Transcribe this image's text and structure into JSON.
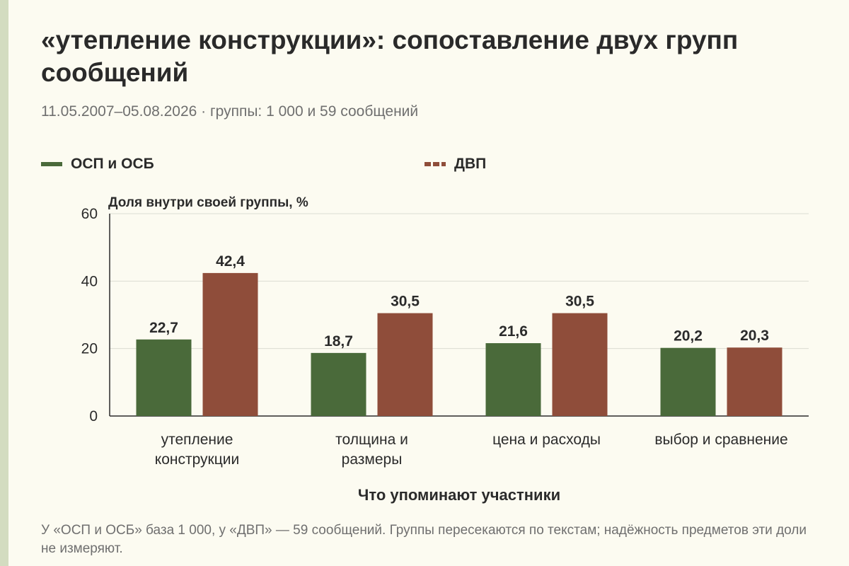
{
  "title": "«утепление конструкции»: сопоставление двух групп сообщений",
  "subtitle": "11.05.2007–05.08.2026 · группы: 1 000 и 59 сообщений",
  "note": "У «ОСП и ОСБ» база 1 000, у «ДВП» — 59 сообщений. Группы пересекаются по текстам; надёжность предметов эти доли не измеряют.",
  "colors": {
    "green": "#4a6a3a",
    "brown": "#8f4d3a",
    "grid": "#dcdcd2",
    "background": "#fcfbf1"
  },
  "chart_data": {
    "type": "bar",
    "ylabel": "Доля внутри своей группы, %",
    "xlabel": "Что упоминают участники",
    "ylim": [
      0,
      60
    ],
    "yticks": [
      "0",
      "20",
      "40",
      "60"
    ],
    "grid": true,
    "legend_position": "top",
    "categories": [
      [
        "утепление",
        "конструкции"
      ],
      [
        "толщина и",
        "размеры"
      ],
      [
        "цена и расходы"
      ],
      [
        "выбор и сравнение"
      ]
    ],
    "series": [
      {
        "name": "ОСП и ОСБ",
        "color": "#4a6a3a",
        "values": [
          22.7,
          18.7,
          21.6,
          20.2
        ],
        "labels": [
          "22,7",
          "18,7",
          "21,6",
          "20,2"
        ]
      },
      {
        "name": "ДВП",
        "color": "#8f4d3a",
        "values": [
          42.4,
          30.5,
          30.5,
          20.3
        ],
        "labels": [
          "42,4",
          "30,5",
          "30,5",
          "20,3"
        ]
      }
    ]
  }
}
